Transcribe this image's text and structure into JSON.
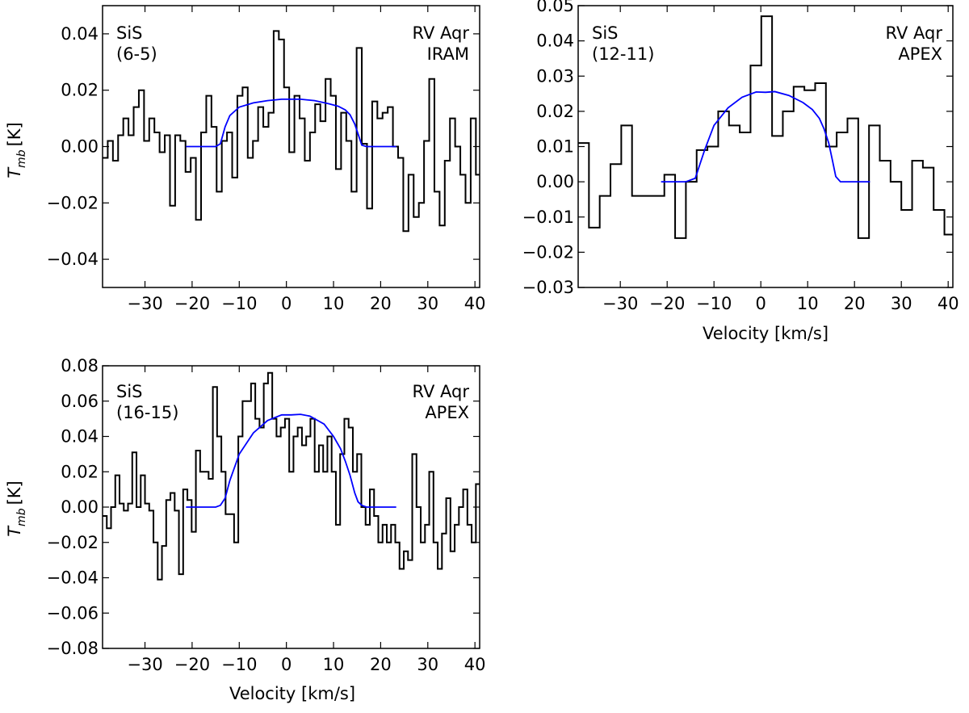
{
  "chart_data": [
    {
      "type": "line",
      "molecule": "SiS",
      "transition": "(6-5)",
      "source": "RV Aqr",
      "telescope": "IRAM",
      "xlabel": "",
      "ylabel": "T",
      "ylabel_sub": "mb",
      "ylabel_unit": "[K]",
      "xlim": [
        -39,
        41
      ],
      "ylim": [
        -0.05,
        0.05
      ],
      "xticks": [
        -30,
        -20,
        -10,
        0,
        10,
        20,
        30,
        40
      ],
      "xtick_labels": [
        "−30",
        "−20",
        "−10",
        "0",
        "10",
        "20",
        "30",
        "40"
      ],
      "yticks": [
        -0.04,
        -0.02,
        0.0,
        0.02,
        0.04
      ],
      "ytick_labels": [
        "−0.04",
        "−0.02",
        "0.00",
        "0.02",
        "0.04"
      ],
      "series": [
        {
          "name": "observed spectrum",
          "style": "steps",
          "color": "#000000",
          "x": [
            -39.0,
            -37.9,
            -36.8,
            -35.7,
            -34.6,
            -33.5,
            -32.4,
            -31.3,
            -30.2,
            -29.1,
            -28.0,
            -26.9,
            -25.8,
            -24.7,
            -23.6,
            -22.5,
            -21.4,
            -20.3,
            -19.2,
            -18.1,
            -17.0,
            -15.9,
            -14.8,
            -13.7,
            -12.6,
            -11.5,
            -10.4,
            -9.3,
            -8.2,
            -7.1,
            -6.0,
            -4.9,
            -3.8,
            -2.7,
            -1.6,
            -0.5,
            0.6,
            1.7,
            2.8,
            3.9,
            5.0,
            6.1,
            7.2,
            8.3,
            9.4,
            10.5,
            11.6,
            12.7,
            13.8,
            14.9,
            16.0,
            17.1,
            18.2,
            19.3,
            20.4,
            21.5,
            22.6,
            23.7,
            24.8,
            25.9,
            27.0,
            28.1,
            29.2,
            30.3,
            31.4,
            32.5,
            33.6,
            34.7,
            35.8,
            36.9,
            38.0,
            39.1,
            40.2
          ],
          "values": [
            -0.004,
            0.002,
            -0.005,
            0.004,
            0.01,
            0.004,
            0.014,
            0.02,
            0.002,
            0.01,
            0.005,
            -0.002,
            0.004,
            -0.021,
            0.004,
            0.002,
            -0.009,
            -0.004,
            -0.026,
            0.005,
            0.018,
            0.007,
            -0.016,
            0.002,
            0.005,
            -0.011,
            0.018,
            0.021,
            -0.004,
            0.002,
            0.014,
            0.007,
            0.012,
            0.041,
            0.038,
            0.021,
            -0.002,
            0.018,
            0.01,
            -0.005,
            0.005,
            0.015,
            0.009,
            0.024,
            0.018,
            -0.008,
            0.012,
            0.002,
            -0.016,
            0.035,
            0.001,
            -0.022,
            0.016,
            0.01,
            0.012,
            0.014,
            0.0,
            -0.004,
            -0.03,
            -0.01,
            -0.025,
            -0.02,
            0.002,
            0.024,
            -0.016,
            -0.028,
            -0.005,
            0.01,
            0.0,
            -0.01,
            -0.02,
            0.01,
            -0.01
          ]
        },
        {
          "name": "model fit",
          "style": "line",
          "color": "#0000ff",
          "x": [
            -21.3,
            -17,
            -15,
            -14,
            -13,
            -12,
            -10,
            -7,
            -4,
            -1,
            3,
            6,
            9,
            11,
            12.5,
            13.5,
            14.5,
            15.3,
            16,
            17,
            23.3
          ],
          "values": [
            0.0,
            0.0,
            0.0,
            0.001,
            0.007,
            0.011,
            0.014,
            0.0155,
            0.0163,
            0.0168,
            0.0168,
            0.0163,
            0.0152,
            0.0143,
            0.013,
            0.0113,
            0.008,
            0.004,
            0.0005,
            0.0,
            0.0
          ]
        }
      ]
    },
    {
      "type": "line",
      "molecule": "SiS",
      "transition": "(12-11)",
      "source": "RV Aqr",
      "telescope": "APEX",
      "xlabel": "Velocity [km/s]",
      "ylabel": "",
      "xlim": [
        -39,
        41
      ],
      "ylim": [
        -0.03,
        0.05
      ],
      "xticks": [
        -30,
        -20,
        -10,
        0,
        10,
        20,
        30,
        40
      ],
      "xtick_labels": [
        "−30",
        "−20",
        "−10",
        "0",
        "10",
        "20",
        "30",
        "40"
      ],
      "yticks": [
        -0.03,
        -0.02,
        -0.01,
        0.0,
        0.01,
        0.02,
        0.03,
        0.04,
        0.05
      ],
      "ytick_labels": [
        "−0.03",
        "−0.02",
        "−0.01",
        "0.00",
        "0.01",
        "0.02",
        "0.03",
        "0.04",
        "0.05"
      ],
      "series": [
        {
          "name": "observed spectrum",
          "style": "steps",
          "color": "#000000",
          "x": [
            -39.0,
            -36.7,
            -34.4,
            -32.1,
            -29.8,
            -27.5,
            -25.2,
            -22.9,
            -20.6,
            -18.3,
            -16.0,
            -13.7,
            -11.4,
            -9.1,
            -6.8,
            -4.5,
            -2.2,
            0.1,
            2.4,
            4.7,
            7.0,
            9.3,
            11.6,
            13.9,
            16.2,
            18.5,
            20.8,
            23.1,
            25.4,
            27.7,
            30.0,
            32.3,
            34.6,
            36.9,
            39.2
          ],
          "values": [
            0.011,
            -0.013,
            -0.004,
            0.005,
            0.016,
            -0.004,
            -0.004,
            -0.004,
            0.002,
            -0.016,
            0.0,
            0.009,
            0.01,
            0.02,
            0.016,
            0.014,
            0.033,
            0.047,
            0.013,
            0.02,
            0.027,
            0.026,
            0.028,
            0.01,
            0.014,
            0.018,
            -0.016,
            0.016,
            0.006,
            0.0,
            -0.008,
            0.006,
            0.004,
            -0.008,
            -0.015
          ]
        },
        {
          "name": "model fit",
          "style": "line",
          "color": "#0000ff",
          "x": [
            -21.3,
            -18,
            -16,
            -14,
            -13,
            -12,
            -10,
            -7,
            -4,
            -1,
            1,
            3,
            6,
            9,
            11,
            12.5,
            13.5,
            14.5,
            15.3,
            16,
            17,
            23.3
          ],
          "values": [
            0.0,
            0.0,
            0.0,
            0.001,
            0.005,
            0.009,
            0.016,
            0.021,
            0.024,
            0.0255,
            0.0254,
            0.0256,
            0.0245,
            0.0225,
            0.0205,
            0.018,
            0.015,
            0.011,
            0.006,
            0.0015,
            0.0,
            0.0
          ]
        }
      ]
    },
    {
      "type": "line",
      "molecule": "SiS",
      "transition": "(16-15)",
      "source": "RV Aqr",
      "telescope": "APEX",
      "xlabel": "Velocity [km/s]",
      "ylabel": "T",
      "ylabel_sub": "mb",
      "ylabel_unit": "[K]",
      "xlim": [
        -39,
        41
      ],
      "ylim": [
        -0.08,
        0.08
      ],
      "xticks": [
        -30,
        -20,
        -10,
        0,
        10,
        20,
        30,
        40
      ],
      "xtick_labels": [
        "−30",
        "−20",
        "−10",
        "0",
        "10",
        "20",
        "30",
        "40"
      ],
      "yticks": [
        -0.08,
        -0.06,
        -0.04,
        -0.02,
        0.0,
        0.02,
        0.04,
        0.06,
        0.08
      ],
      "ytick_labels": [
        "−0.08",
        "−0.06",
        "−0.04",
        "−0.02",
        "0.00",
        "0.02",
        "0.04",
        "0.06",
        "0.08"
      ],
      "series": [
        {
          "name": "observed spectrum",
          "style": "steps",
          "color": "#000000",
          "x": [
            -39.0,
            -38.1,
            -37.2,
            -36.3,
            -35.4,
            -34.5,
            -33.6,
            -32.7,
            -31.8,
            -30.9,
            -30.0,
            -29.1,
            -28.2,
            -27.3,
            -26.4,
            -25.5,
            -24.6,
            -23.7,
            -22.8,
            -21.9,
            -21.0,
            -20.1,
            -19.2,
            -18.3,
            -17.4,
            -16.5,
            -15.6,
            -14.7,
            -13.8,
            -12.9,
            -12.0,
            -11.1,
            -10.2,
            -9.3,
            -8.4,
            -7.5,
            -6.6,
            -5.7,
            -4.8,
            -3.9,
            -3.0,
            -2.1,
            -1.2,
            -0.3,
            0.6,
            1.5,
            2.4,
            3.3,
            4.2,
            5.1,
            6.0,
            6.9,
            7.8,
            8.7,
            9.6,
            10.5,
            11.4,
            12.3,
            13.2,
            14.1,
            15.0,
            15.9,
            16.8,
            17.7,
            18.6,
            19.5,
            20.4,
            21.3,
            22.2,
            23.1,
            24.0,
            24.9,
            25.8,
            26.7,
            27.6,
            28.5,
            29.4,
            30.3,
            31.2,
            32.1,
            33.0,
            33.9,
            34.8,
            35.7,
            36.6,
            37.5,
            38.4,
            39.3,
            40.2
          ],
          "values": [
            -0.005,
            -0.012,
            0.0,
            0.018,
            0.002,
            -0.002,
            0.002,
            0.031,
            0.0,
            0.018,
            0.002,
            -0.002,
            -0.02,
            -0.041,
            -0.022,
            0.004,
            0.008,
            -0.002,
            -0.038,
            0.01,
            0.004,
            -0.014,
            0.032,
            0.02,
            0.02,
            0.016,
            0.068,
            0.04,
            0.02,
            -0.004,
            -0.004,
            -0.02,
            0.04,
            0.06,
            0.06,
            0.07,
            0.05,
            0.045,
            0.07,
            0.076,
            0.05,
            0.04,
            0.045,
            0.05,
            0.02,
            0.04,
            0.045,
            0.035,
            0.04,
            0.05,
            0.02,
            0.035,
            0.02,
            0.04,
            0.02,
            -0.01,
            0.03,
            0.05,
            0.045,
            0.02,
            0.03,
            0.0,
            -0.01,
            0.01,
            -0.005,
            -0.02,
            -0.01,
            -0.02,
            -0.01,
            -0.02,
            -0.035,
            -0.025,
            -0.03,
            0.03,
            0.0,
            -0.02,
            -0.01,
            0.02,
            -0.02,
            -0.035,
            -0.015,
            0.005,
            -0.025,
            -0.01,
            0.0,
            0.01,
            -0.01,
            -0.02,
            0.013
          ]
        },
        {
          "name": "model fit",
          "style": "line",
          "color": "#0000ff",
          "x": [
            -21.3,
            -18,
            -15,
            -14,
            -13,
            -12,
            -10,
            -7,
            -4,
            -1,
            1,
            3,
            5,
            8,
            10,
            11.5,
            12.5,
            13.5,
            14.5,
            15.2,
            16,
            17,
            23.3
          ],
          "values": [
            0.0,
            0.0,
            0.0,
            0.001,
            0.005,
            0.015,
            0.03,
            0.042,
            0.049,
            0.0522,
            0.0522,
            0.0525,
            0.0515,
            0.047,
            0.04,
            0.033,
            0.026,
            0.018,
            0.008,
            0.003,
            0.001,
            0.0,
            0.0
          ]
        }
      ]
    }
  ]
}
